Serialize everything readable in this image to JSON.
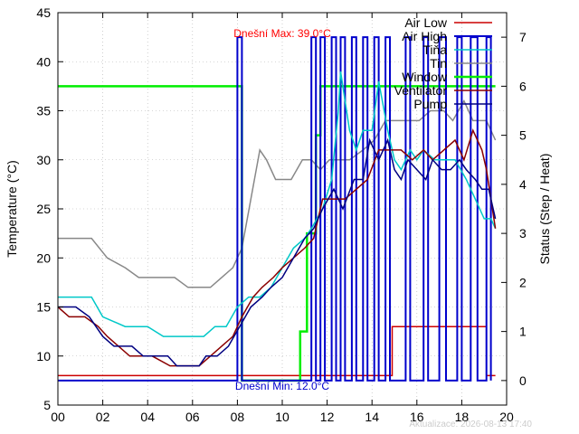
{
  "chart_data": {
    "type": "line",
    "title": "",
    "xlabel": "",
    "ylabel": "Temperature (°C)",
    "y2label": "Status (Step / Heat)",
    "xlim": [
      0,
      20
    ],
    "ylim": [
      5,
      45
    ],
    "y2lim": [
      -0.5,
      7.5
    ],
    "x_ticks": [
      "00",
      "02",
      "04",
      "06",
      "08",
      "10",
      "12",
      "14",
      "16",
      "18",
      "20"
    ],
    "y_ticks": [
      "5",
      "10",
      "15",
      "20",
      "25",
      "30",
      "35",
      "40",
      "45"
    ],
    "y2_ticks": [
      "0",
      "1",
      "2",
      "3",
      "4",
      "5",
      "6",
      "7"
    ],
    "grid": true,
    "legend_position": "top-right",
    "annotations": {
      "max_label": "Dnešní Max: 39.0°C",
      "min_label": "Dnešní Min: 12.0°C",
      "timestamp": "Aktualizace: 2026-08-13 17:40"
    },
    "series": [
      {
        "name": "Air Low",
        "color": "#cc0000",
        "axis": "y2",
        "step": true,
        "points": [
          [
            0,
            0.1
          ],
          [
            14.9,
            0.1
          ],
          [
            14.9,
            1.1
          ],
          [
            19.1,
            1.1
          ],
          [
            19.1,
            0.1
          ],
          [
            19.5,
            0.1
          ]
        ]
      },
      {
        "name": "Air High",
        "color": "#0000cc",
        "axis": "y2",
        "step": true,
        "points": [
          [
            0,
            0
          ],
          [
            8,
            0
          ],
          [
            8,
            7
          ],
          [
            8.2,
            7
          ],
          [
            8.2,
            0
          ],
          [
            11.3,
            0
          ],
          [
            11.3,
            7
          ],
          [
            11.5,
            7
          ],
          [
            11.5,
            0
          ],
          [
            11.7,
            0
          ],
          [
            11.7,
            7
          ],
          [
            11.9,
            7
          ],
          [
            11.9,
            0
          ],
          [
            12.2,
            0
          ],
          [
            12.2,
            7
          ],
          [
            12.4,
            7
          ],
          [
            12.4,
            0
          ],
          [
            12.6,
            0
          ],
          [
            12.6,
            7
          ],
          [
            12.8,
            7
          ],
          [
            12.8,
            0
          ],
          [
            13.1,
            0
          ],
          [
            13.1,
            7
          ],
          [
            13.3,
            7
          ],
          [
            13.3,
            0
          ],
          [
            13.6,
            0
          ],
          [
            13.6,
            7
          ],
          [
            13.8,
            7
          ],
          [
            13.8,
            0
          ],
          [
            14.1,
            0
          ],
          [
            14.1,
            7
          ],
          [
            14.3,
            7
          ],
          [
            14.3,
            0
          ],
          [
            14.6,
            0
          ],
          [
            14.6,
            7
          ],
          [
            14.8,
            7
          ],
          [
            14.8,
            0
          ],
          [
            15.5,
            0
          ],
          [
            15.5,
            7
          ],
          [
            15.7,
            7
          ],
          [
            15.7,
            0
          ],
          [
            16.3,
            0
          ],
          [
            16.3,
            7
          ],
          [
            16.5,
            7
          ],
          [
            16.5,
            0
          ],
          [
            17,
            0
          ],
          [
            17,
            7
          ],
          [
            17.3,
            7
          ],
          [
            17.3,
            0
          ],
          [
            17.8,
            0
          ],
          [
            17.8,
            7
          ],
          [
            18,
            7
          ],
          [
            18,
            0
          ],
          [
            18.4,
            0
          ],
          [
            18.4,
            7
          ],
          [
            18.7,
            7
          ],
          [
            18.7,
            0
          ],
          [
            19.1,
            0
          ],
          [
            19.1,
            7
          ],
          [
            19.3,
            7
          ],
          [
            19.3,
            0
          ]
        ]
      },
      {
        "name": "Tiňa",
        "color": "#00c8c8",
        "axis": "y",
        "points": [
          [
            0,
            16
          ],
          [
            1.5,
            16
          ],
          [
            2,
            14
          ],
          [
            3,
            13
          ],
          [
            4,
            13
          ],
          [
            4.7,
            12
          ],
          [
            6.5,
            12
          ],
          [
            7,
            13
          ],
          [
            7.5,
            13
          ],
          [
            8,
            15
          ],
          [
            8.5,
            16
          ],
          [
            9,
            16
          ],
          [
            9.5,
            17
          ],
          [
            10,
            19
          ],
          [
            10.5,
            21
          ],
          [
            11,
            22
          ],
          [
            11.3,
            23
          ],
          [
            11.8,
            25
          ],
          [
            12.2,
            28
          ],
          [
            12.5,
            35
          ],
          [
            12.6,
            39
          ],
          [
            12.8,
            36
          ],
          [
            13,
            33
          ],
          [
            13.3,
            31
          ],
          [
            13.6,
            33
          ],
          [
            14,
            33
          ],
          [
            14.3,
            38
          ],
          [
            14.7,
            33
          ],
          [
            15,
            30
          ],
          [
            15.3,
            29
          ],
          [
            15.7,
            31
          ],
          [
            16,
            30
          ],
          [
            16.3,
            31
          ],
          [
            16.8,
            30
          ],
          [
            17.2,
            30
          ],
          [
            17.7,
            30
          ],
          [
            18.2,
            28
          ],
          [
            18.6,
            26
          ],
          [
            19,
            24
          ],
          [
            19.3,
            24
          ],
          [
            19.5,
            23
          ]
        ]
      },
      {
        "name": "Tin",
        "color": "#888888",
        "axis": "y",
        "points": [
          [
            0,
            22
          ],
          [
            1.5,
            22
          ],
          [
            2.2,
            20
          ],
          [
            3,
            19
          ],
          [
            3.6,
            18
          ],
          [
            5.2,
            18
          ],
          [
            5.8,
            17
          ],
          [
            6.8,
            17
          ],
          [
            7.3,
            18
          ],
          [
            7.8,
            19
          ],
          [
            8.2,
            21
          ],
          [
            8.6,
            26
          ],
          [
            9,
            31
          ],
          [
            9.3,
            30
          ],
          [
            9.7,
            28
          ],
          [
            10.4,
            28
          ],
          [
            10.9,
            30
          ],
          [
            11.3,
            30
          ],
          [
            11.7,
            29
          ],
          [
            12.1,
            30
          ],
          [
            13,
            30
          ],
          [
            13.6,
            31
          ],
          [
            14.1,
            32
          ],
          [
            14.6,
            34
          ],
          [
            15.1,
            34
          ],
          [
            15.6,
            34
          ],
          [
            16.1,
            34
          ],
          [
            16.6,
            35
          ],
          [
            17.2,
            35
          ],
          [
            17.6,
            34
          ],
          [
            18.1,
            36
          ],
          [
            18.5,
            34
          ],
          [
            19.1,
            34
          ],
          [
            19.5,
            32
          ]
        ]
      },
      {
        "name": "Window",
        "color": "#00ee00",
        "axis": "y2",
        "step": true,
        "points": [
          [
            0,
            6
          ],
          [
            8.2,
            6
          ],
          [
            8.2,
            0
          ],
          [
            10.8,
            0
          ],
          [
            10.8,
            1
          ],
          [
            11.1,
            1
          ],
          [
            11.1,
            3
          ],
          [
            11.5,
            3
          ],
          [
            11.5,
            5
          ],
          [
            11.7,
            5
          ],
          [
            11.7,
            6
          ],
          [
            19.5,
            6
          ]
        ]
      },
      {
        "name": "Ventilator",
        "color": "#8b0000",
        "axis": "y",
        "points": [
          [
            0,
            15
          ],
          [
            0.5,
            14
          ],
          [
            1.2,
            14
          ],
          [
            1.8,
            13
          ],
          [
            2.2,
            12
          ],
          [
            3.2,
            10
          ],
          [
            4.2,
            10
          ],
          [
            5,
            9
          ],
          [
            6.3,
            9
          ],
          [
            6.8,
            10
          ],
          [
            7.3,
            11
          ],
          [
            7.8,
            12
          ],
          [
            8.2,
            14
          ],
          [
            8.7,
            16
          ],
          [
            9.1,
            17
          ],
          [
            9.6,
            18
          ],
          [
            10,
            19
          ],
          [
            10.5,
            20
          ],
          [
            11,
            21
          ],
          [
            11.4,
            22
          ],
          [
            11.8,
            26
          ],
          [
            12.3,
            26
          ],
          [
            12.8,
            26
          ],
          [
            13.3,
            27
          ],
          [
            13.8,
            28
          ],
          [
            14.3,
            31
          ],
          [
            14.8,
            31
          ],
          [
            15.3,
            31
          ],
          [
            15.8,
            30
          ],
          [
            16.3,
            31
          ],
          [
            16.7,
            30
          ],
          [
            17.2,
            31
          ],
          [
            17.7,
            32
          ],
          [
            18.1,
            30
          ],
          [
            18.5,
            33
          ],
          [
            18.9,
            31
          ],
          [
            19.1,
            29
          ],
          [
            19.5,
            23
          ]
        ]
      },
      {
        "name": "Pump",
        "color": "#000080",
        "axis": "y",
        "points": [
          [
            0,
            15
          ],
          [
            0.8,
            15
          ],
          [
            1.4,
            14
          ],
          [
            2,
            12
          ],
          [
            2.5,
            11
          ],
          [
            3.3,
            11
          ],
          [
            3.8,
            10
          ],
          [
            4.9,
            10
          ],
          [
            5.3,
            9
          ],
          [
            6.3,
            9
          ],
          [
            6.6,
            10
          ],
          [
            7.1,
            10
          ],
          [
            7.6,
            11
          ],
          [
            8.1,
            13
          ],
          [
            8.6,
            15
          ],
          [
            9.1,
            16
          ],
          [
            9.5,
            17
          ],
          [
            10,
            18
          ],
          [
            10.5,
            20
          ],
          [
            11,
            22
          ],
          [
            11.4,
            23
          ],
          [
            11.8,
            25
          ],
          [
            12.3,
            27
          ],
          [
            12.7,
            25
          ],
          [
            13.2,
            28
          ],
          [
            13.6,
            28
          ],
          [
            13.9,
            32
          ],
          [
            14.3,
            30
          ],
          [
            14.7,
            32
          ],
          [
            15,
            29
          ],
          [
            15.3,
            28
          ],
          [
            15.6,
            30
          ],
          [
            16,
            29
          ],
          [
            16.4,
            28
          ],
          [
            16.7,
            30
          ],
          [
            17.1,
            29
          ],
          [
            17.5,
            29
          ],
          [
            17.9,
            30
          ],
          [
            18.2,
            29
          ],
          [
            18.6,
            28
          ],
          [
            18.9,
            27
          ],
          [
            19.2,
            27
          ],
          [
            19.5,
            24
          ]
        ]
      }
    ]
  }
}
